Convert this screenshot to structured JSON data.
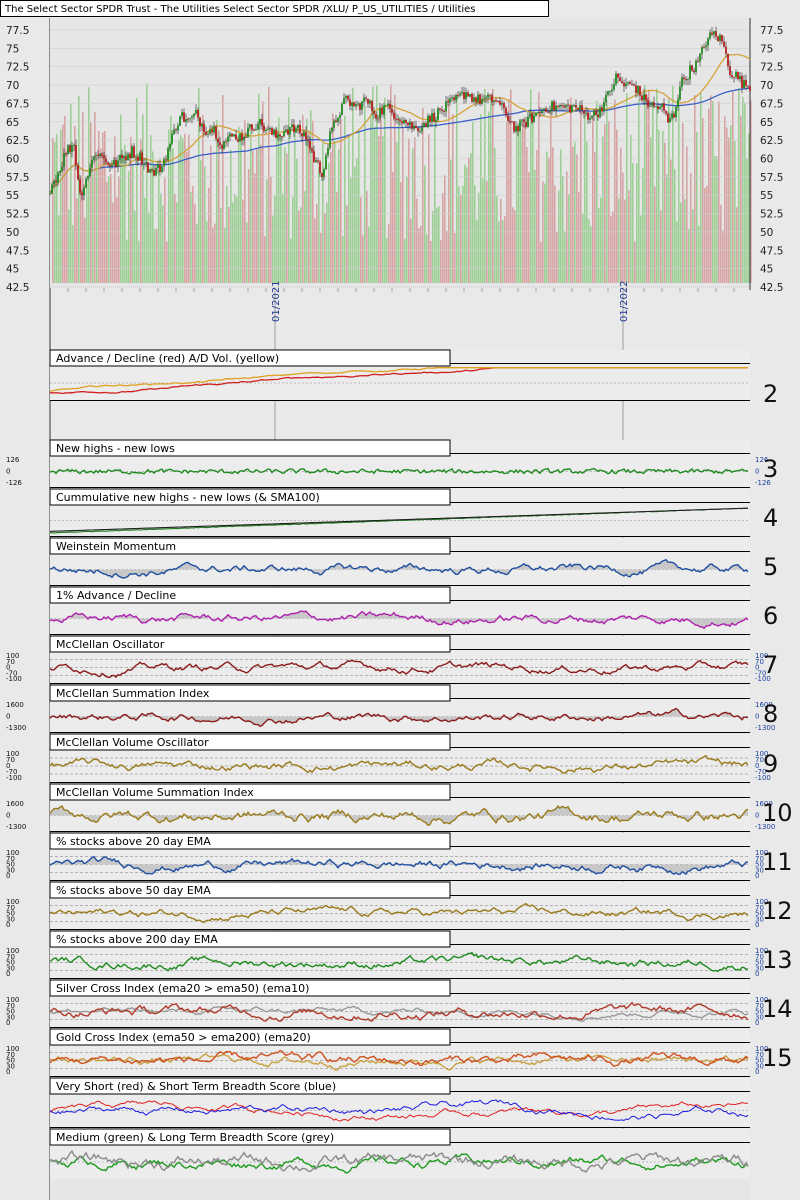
{
  "page_title": "The Select Sector SPDR Trust - The Utilities Select Sector SPDR /XLU/ P_US_UTILITIES / Utilities",
  "chart_data": {
    "type": "line",
    "x_dates": [
      "01/2021",
      "01/2022"
    ],
    "price_panel": {
      "series": [
        "price candles",
        "SMA50",
        "SMA200",
        "volume"
      ],
      "y_ticks": [
        42.5,
        45,
        47.5,
        50,
        52.5,
        55,
        57.5,
        60,
        62.5,
        65,
        67.5,
        70,
        72.5,
        75,
        77.5
      ],
      "ylim": [
        42.5,
        77.5
      ],
      "colors": {
        "up": "#1f8a1f",
        "down": "#b81c1c",
        "sma50": "#d4a23a",
        "sma200": "#3b61c8",
        "vol_up": "#9ccf94",
        "vol_down": "#d7a3a3"
      },
      "path": [
        [
          0,
          56
        ],
        [
          8,
          58
        ],
        [
          16,
          61
        ],
        [
          24,
          62
        ],
        [
          30,
          55
        ],
        [
          38,
          58
        ],
        [
          46,
          61
        ],
        [
          54,
          60
        ],
        [
          62,
          59
        ],
        [
          72,
          60
        ],
        [
          82,
          61
        ],
        [
          92,
          60
        ],
        [
          102,
          58
        ],
        [
          112,
          59
        ],
        [
          120,
          62
        ],
        [
          130,
          66
        ],
        [
          138,
          65
        ],
        [
          146,
          66
        ],
        [
          155,
          64
        ],
        [
          164,
          64
        ],
        [
          172,
          62
        ],
        [
          182,
          63
        ],
        [
          192,
          63
        ],
        [
          200,
          64
        ],
        [
          208,
          65
        ],
        [
          216,
          64
        ],
        [
          226,
          63
        ],
        [
          236,
          64
        ],
        [
          246,
          64
        ],
        [
          256,
          63
        ],
        [
          264,
          60
        ],
        [
          272,
          58
        ],
        [
          280,
          63
        ],
        [
          288,
          66
        ],
        [
          296,
          68
        ],
        [
          306,
          67
        ],
        [
          316,
          68
        ],
        [
          326,
          66
        ],
        [
          336,
          67
        ],
        [
          346,
          66
        ],
        [
          356,
          65
        ],
        [
          366,
          64
        ],
        [
          376,
          65
        ],
        [
          386,
          66
        ],
        [
          396,
          67
        ],
        [
          406,
          68
        ],
        [
          416,
          69
        ],
        [
          426,
          68
        ],
        [
          436,
          68
        ],
        [
          446,
          68
        ],
        [
          456,
          66
        ],
        [
          466,
          64
        ],
        [
          476,
          65
        ],
        [
          486,
          66
        ],
        [
          496,
          67
        ],
        [
          506,
          67
        ],
        [
          516,
          67
        ],
        [
          526,
          67
        ],
        [
          536,
          66
        ],
        [
          546,
          66
        ],
        [
          556,
          68
        ],
        [
          566,
          71
        ],
        [
          574,
          70
        ],
        [
          584,
          70
        ],
        [
          594,
          68
        ],
        [
          604,
          67
        ],
        [
          612,
          67
        ],
        [
          618,
          65
        ],
        [
          624,
          66
        ],
        [
          630,
          70
        ],
        [
          640,
          72
        ],
        [
          648,
          73
        ],
        [
          656,
          76
        ],
        [
          664,
          77
        ],
        [
          672,
          76
        ],
        [
          680,
          72
        ],
        [
          688,
          71
        ],
        [
          694,
          70
        ],
        [
          700,
          70
        ]
      ]
    },
    "panels": [
      {
        "id": 2,
        "title": "Advance / Decline (red) A/D Vol. (yellow)",
        "series": [
          {
            "name": "Advance / Decline",
            "color": "#d02020"
          },
          {
            "name": "A/D Vol.",
            "color": "#e0a020"
          }
        ]
      },
      {
        "id": 3,
        "title": "New highs - new lows",
        "axis": [
          "126",
          "0",
          "-126"
        ],
        "series": [
          {
            "color": "#1e8a1e"
          }
        ]
      },
      {
        "id": 4,
        "title": "Cummulative new highs - new lows (& SMA100)",
        "series": [
          {
            "color": "#1e7a1e"
          },
          {
            "color": "#222222"
          }
        ]
      },
      {
        "id": 5,
        "title": "Weinstein Momentum",
        "series": [
          {
            "color": "#1f4fa0"
          }
        ]
      },
      {
        "id": 6,
        "title": "1% Advance / Decline",
        "series": [
          {
            "color": "#b020b0"
          }
        ]
      },
      {
        "id": 7,
        "title": "McClellan Oscillator",
        "axis": [
          "100",
          "70",
          "0",
          "-70",
          "-100"
        ],
        "series": [
          {
            "color": "#8b1a1a"
          }
        ]
      },
      {
        "id": 8,
        "title": "McClellan Summation Index",
        "axis": [
          "1600",
          "0",
          "-1300"
        ],
        "series": [
          {
            "color": "#8b1a1a"
          }
        ]
      },
      {
        "id": 9,
        "title": "McClellan Volume Oscillator",
        "axis": [
          "100",
          "70",
          "0",
          "-70",
          "-100"
        ],
        "series": [
          {
            "color": "#9a7a1a"
          }
        ]
      },
      {
        "id": 10,
        "title": "McClellan Volume Summation Index",
        "axis": [
          "1600",
          "0",
          "-1300"
        ],
        "series": [
          {
            "color": "#9a7a1a"
          }
        ]
      },
      {
        "id": 11,
        "title": "% stocks above 20 day EMA",
        "axis": [
          "100",
          "70",
          "50",
          "30",
          "0"
        ],
        "series": [
          {
            "color": "#1f4fa0"
          }
        ]
      },
      {
        "id": 12,
        "title": "% stocks above 50 day EMA",
        "axis": [
          "100",
          "70",
          "50",
          "30",
          "0"
        ],
        "series": [
          {
            "color": "#9a7a1a"
          }
        ]
      },
      {
        "id": 13,
        "title": "% stocks above 200 day EMA",
        "axis": [
          "100",
          "70",
          "50",
          "30",
          "0"
        ],
        "series": [
          {
            "color": "#1e8a1e"
          }
        ]
      },
      {
        "id": 14,
        "title": "Silver Cross Index (ema20 > ema50) (ema10)",
        "axis": [
          "100",
          "70",
          "50",
          "30",
          "0"
        ],
        "series": [
          {
            "color": "#999999"
          },
          {
            "color": "#b03a2a"
          }
        ]
      },
      {
        "id": 15,
        "title": "Gold Cross Index (ema50 > ema200) (ema20)",
        "axis": [
          "100",
          "70",
          "50",
          "30",
          "0"
        ],
        "series": [
          {
            "color": "#c8a040"
          },
          {
            "color": "#d05020"
          }
        ]
      },
      {
        "id": 16,
        "title": "Very Short (red) & Short Term Breadth Score (blue)",
        "series": [
          {
            "name": "Very Short",
            "color": "#e02020"
          },
          {
            "name": "Short Term",
            "color": "#1a1ae0"
          }
        ]
      },
      {
        "id": 17,
        "title": "Medium (green) & Long Term Breadth Score (grey)",
        "series": [
          {
            "name": "Medium",
            "color": "#1e9a1e"
          },
          {
            "name": "Long Term",
            "color": "#8a8a8a"
          }
        ]
      }
    ]
  }
}
